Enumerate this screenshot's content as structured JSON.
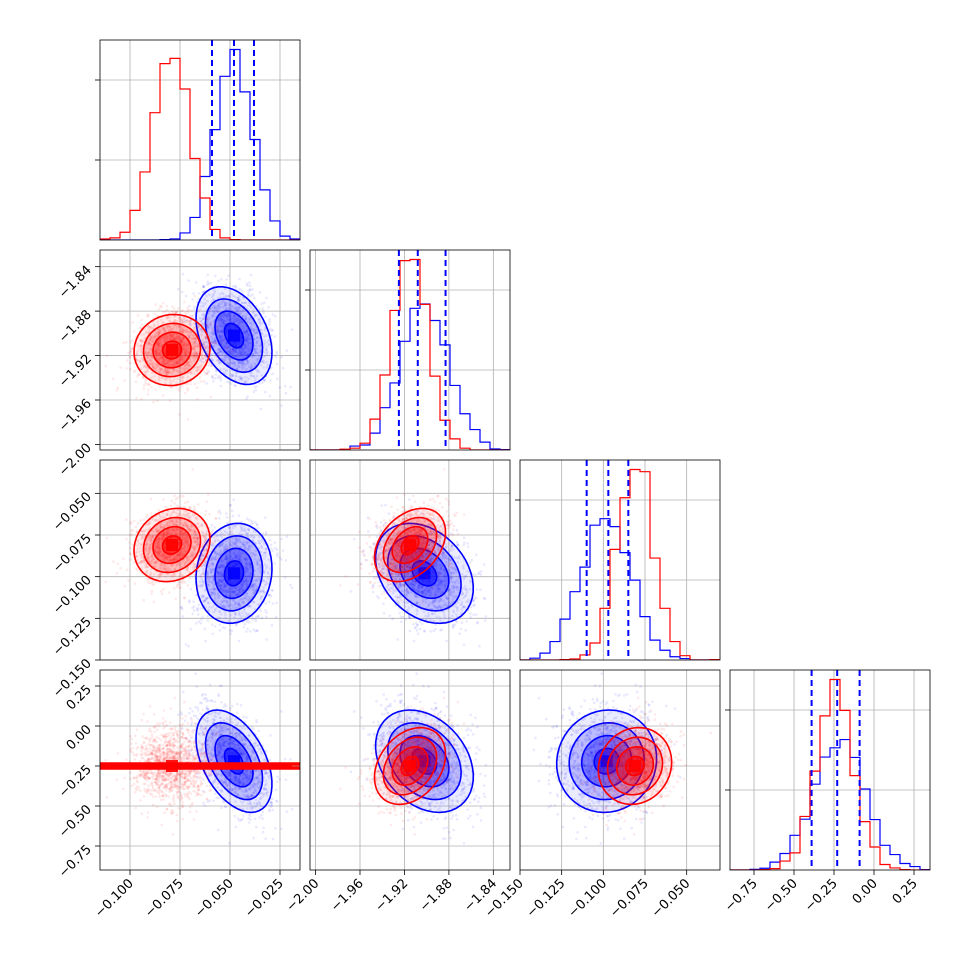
{
  "chart_data": {
    "type": "corner",
    "title": "",
    "parameters": [
      {
        "range": [
          -0.115,
          -0.015
        ],
        "ticks": [
          -0.1,
          -0.075,
          -0.05,
          -0.025
        ],
        "tick_labels": [
          "−0.100",
          "−0.075",
          "−0.050",
          "−0.025"
        ]
      },
      {
        "range": [
          -2.005,
          -1.825
        ],
        "ticks": [
          -2.0,
          -1.96,
          -1.92,
          -1.88,
          -1.84
        ],
        "tick_labels": [
          "−2.00",
          "−1.96",
          "−1.92",
          "−1.88",
          "−1.84"
        ]
      },
      {
        "range": [
          -0.15,
          -0.03
        ],
        "ticks": [
          -0.15,
          -0.125,
          -0.1,
          -0.075,
          -0.05
        ],
        "tick_labels": [
          "−0.150",
          "−0.125",
          "−0.100",
          "−0.075",
          "−0.050"
        ]
      },
      {
        "range": [
          -0.9,
          0.35
        ],
        "ticks": [
          -0.75,
          -0.5,
          -0.25,
          0.0,
          0.25
        ],
        "tick_labels": [
          "−0.75",
          "−0.50",
          "−0.25",
          "0.00",
          "0.25"
        ]
      }
    ],
    "series": [
      {
        "color": "#0000ff",
        "mean": [
          -0.048,
          -1.902,
          -0.098,
          -0.22
        ],
        "std": [
          0.0095,
          0.022,
          0.015,
          0.16
        ],
        "corr": [
          [
            0,
            1,
            -0.35
          ],
          [
            0,
            2,
            0.1
          ],
          [
            0,
            3,
            -0.45
          ],
          [
            1,
            2,
            -0.3
          ],
          [
            1,
            3,
            -0.3
          ],
          [
            2,
            3,
            0.05
          ]
        ],
        "quantiles": [
          [
            -0.059,
            -0.048,
            -0.038
          ],
          [
            -1.925,
            -1.908,
            -1.883
          ],
          [
            -0.11,
            -0.097,
            -0.085
          ],
          [
            -0.39,
            -0.23,
            -0.09
          ]
        ]
      },
      {
        "color": "#ff0000",
        "mean": [
          -0.079,
          -1.915,
          -0.081,
          -0.25
        ],
        "std": [
          0.0095,
          0.016,
          0.011,
          0.12
        ],
        "corr": [
          [
            0,
            1,
            0.05
          ],
          [
            0,
            2,
            0.15
          ],
          [
            0,
            3,
            0.0
          ],
          [
            1,
            2,
            0.35
          ],
          [
            1,
            3,
            0.3
          ],
          [
            2,
            3,
            0.1
          ]
        ]
      }
    ],
    "grid": true,
    "legend": "none"
  }
}
